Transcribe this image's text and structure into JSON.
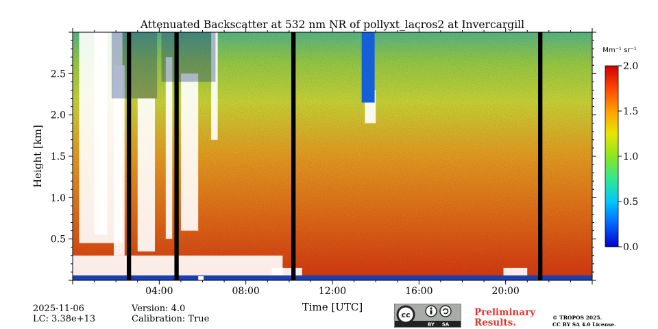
{
  "chart_data": {
    "type": "heatmap",
    "title": "Attenuated Backscatter at 532 nm NR of pollyxt_lacros2 at Invercargill",
    "xlabel": "Time [UTC]",
    "ylabel": "Height [km]",
    "xlim_hours": [
      0,
      24
    ],
    "ylim_km": [
      0,
      3.0
    ],
    "x_ticks": [
      {
        "hour": 4,
        "label": "04:00"
      },
      {
        "hour": 8,
        "label": "08:00"
      },
      {
        "hour": 12,
        "label": "12:00"
      },
      {
        "hour": 16,
        "label": "16:00"
      },
      {
        "hour": 20,
        "label": "20:00"
      }
    ],
    "y_ticks": [
      {
        "km": 0.5,
        "label": "0.5"
      },
      {
        "km": 1.0,
        "label": "1.0"
      },
      {
        "km": 1.5,
        "label": "1.5"
      },
      {
        "km": 2.0,
        "label": "2.0"
      },
      {
        "km": 2.5,
        "label": "2.5"
      }
    ],
    "colorbar": {
      "unit": "Mm⁻¹ sr⁻¹",
      "range": [
        0.0,
        2.0
      ],
      "ticks": [
        {
          "value": 0.0,
          "label": "0.0"
        },
        {
          "value": 0.5,
          "label": "0.5"
        },
        {
          "value": 1.0,
          "label": "1.0"
        },
        {
          "value": 1.5,
          "label": "1.5"
        },
        {
          "value": 2.0,
          "label": "2.0"
        }
      ],
      "colormap": "jet"
    },
    "data_gaps_hours": [
      [
        2.5,
        2.7
      ],
      [
        4.7,
        4.9
      ],
      [
        10.1,
        10.3
      ],
      [
        21.5,
        21.7
      ]
    ],
    "value_field_note": "Backscatter decreases with height from ~2.0 near the surface boundary layer to ~0.5-1.0 above 2.5 km; white regions are masked (clouds/no signal)."
  },
  "footer": {
    "date": "2025-11-06",
    "lc": "LC: 3.38e+13",
    "version": "Version: 4.0",
    "calibration": "Calibration: True",
    "preliminary": "Preliminary Results.",
    "copyright_line1": "© TROPOS 2025.",
    "copyright_line2": "CC BY SA 4.0 License."
  },
  "colors": {
    "gap": "#000000",
    "surface_band": "#1a3fb0"
  }
}
